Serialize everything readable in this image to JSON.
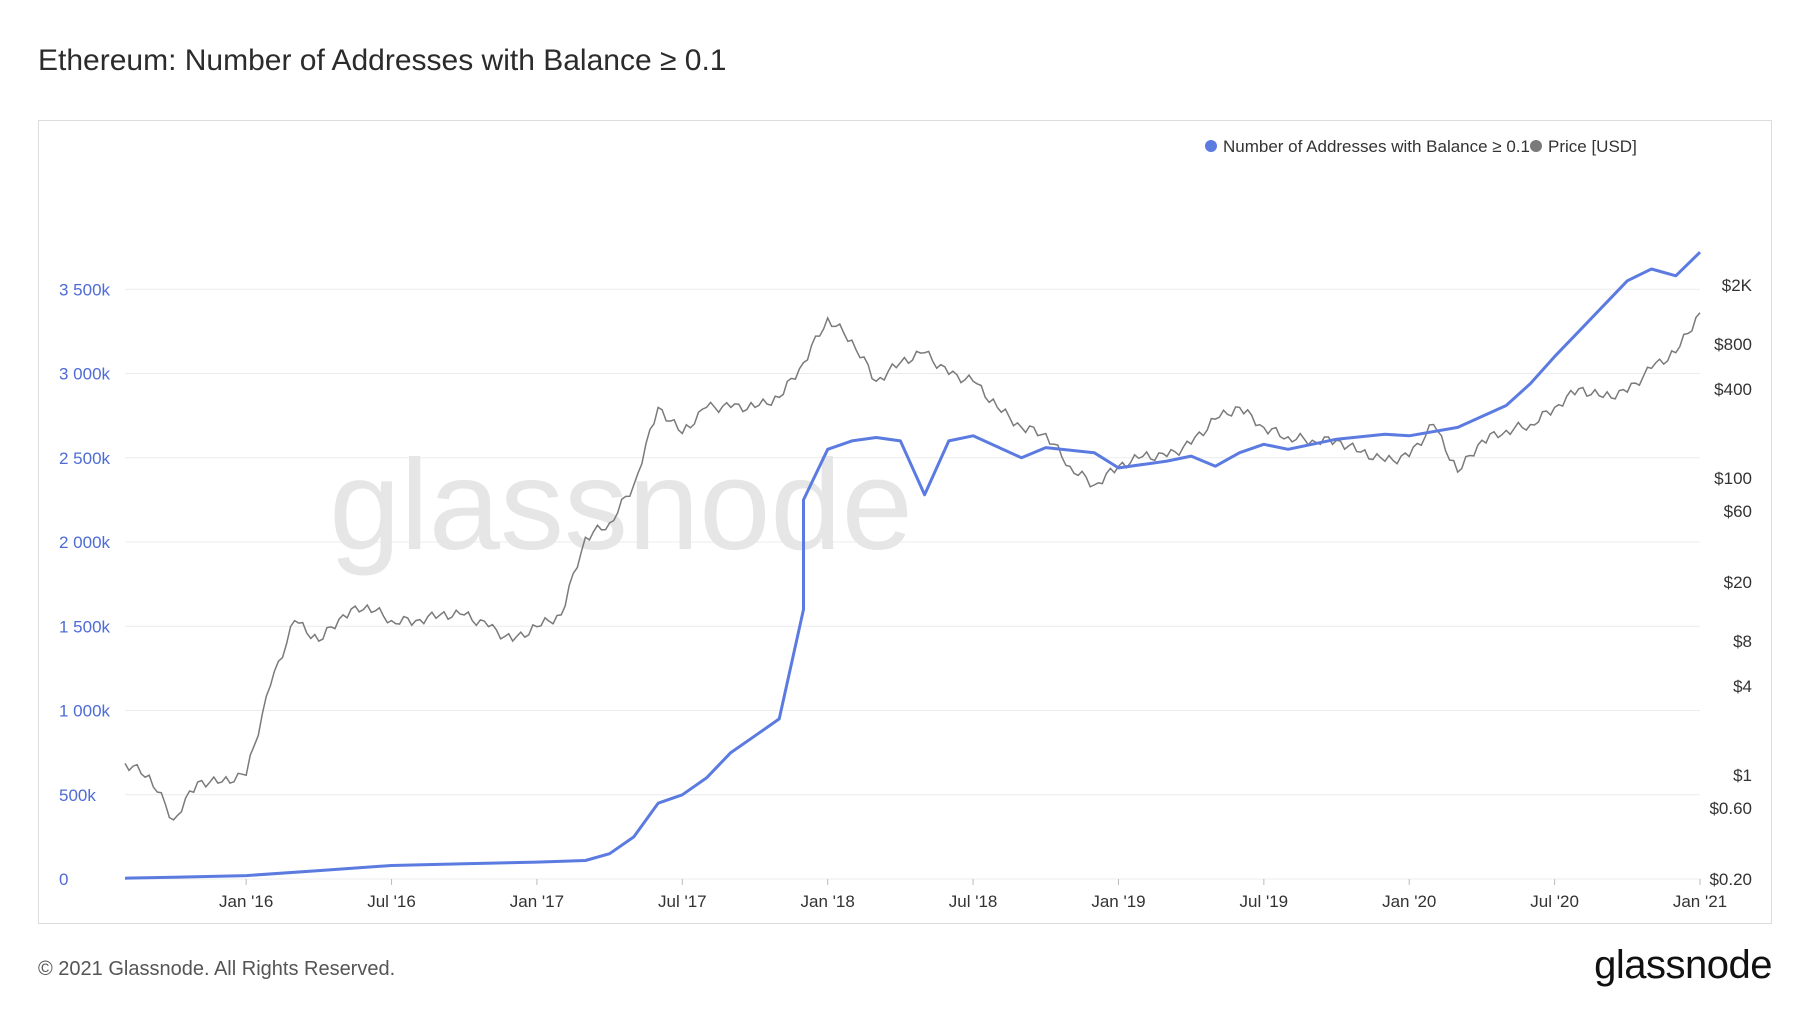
{
  "title": "Ethereum: Number of Addresses with Balance ≥ 0.1",
  "watermark": "glassnode",
  "footer": {
    "copyright": "© 2021 Glassnode. All Rights Reserved.",
    "brand": "glassnode"
  },
  "colors": {
    "addresses": "#5b7be0",
    "price": "#7a7a7a",
    "grid": "#ececec",
    "left_ticks": "#4e6bd6"
  },
  "chart_data": {
    "type": "line",
    "legend": {
      "placement": "top-right",
      "items": [
        "Number of Addresses with Balance ≥ 0.1",
        "Price [USD]"
      ]
    },
    "x_ticks": [
      "Jan '16",
      "Jul '16",
      "Jan '17",
      "Jul '17",
      "Jan '18",
      "Jul '18",
      "Jan '19",
      "Jul '19",
      "Jan '20",
      "Jul '20",
      "Jan '21"
    ],
    "x_tick_dates": [
      "2016-01",
      "2016-07",
      "2017-01",
      "2017-07",
      "2018-01",
      "2018-07",
      "2019-01",
      "2019-07",
      "2020-01",
      "2020-07",
      "2021-01"
    ],
    "xlim": [
      "2015-08",
      "2021-01"
    ],
    "y_left": {
      "label": "",
      "ticks": [
        "0",
        "500k",
        "1 000k",
        "1 500k",
        "2 000k",
        "2 500k",
        "3 000k",
        "3 500k"
      ],
      "values": [
        0,
        500000,
        1000000,
        1500000,
        2000000,
        2500000,
        3000000,
        3500000
      ],
      "ylim": [
        0,
        4000000
      ]
    },
    "y_right": {
      "label": "",
      "scale": "log",
      "ticks": [
        "$0.20",
        "$0.60",
        "$1",
        "$4",
        "$8",
        "$20",
        "$60",
        "$100",
        "$400",
        "$800",
        "$2K"
      ],
      "values": [
        0.2,
        0.6,
        1,
        4,
        8,
        20,
        60,
        100,
        400,
        800,
        2000
      ]
    },
    "grid": true,
    "series": [
      {
        "name": "Number of Addresses with Balance ≥ 0.1",
        "axis": "left",
        "x": [
          "2015-08",
          "2015-10",
          "2016-01",
          "2016-04",
          "2016-07",
          "2016-10",
          "2017-01",
          "2017-03",
          "2017-04",
          "2017-05",
          "2017-06",
          "2017-07",
          "2017-08",
          "2017-09",
          "2017-10",
          "2017-11",
          "2017-12",
          "2017-12",
          "2018-01",
          "2018-02",
          "2018-03",
          "2018-04",
          "2018-05",
          "2018-06",
          "2018-07",
          "2018-09",
          "2018-10",
          "2018-12",
          "2019-01",
          "2019-03",
          "2019-04",
          "2019-05",
          "2019-06",
          "2019-07",
          "2019-08",
          "2019-10",
          "2019-12",
          "2020-01",
          "2020-03",
          "2020-05",
          "2020-06",
          "2020-07",
          "2020-08",
          "2020-09",
          "2020-10",
          "2020-11",
          "2020-12",
          "2021-01"
        ],
        "values": [
          5000,
          10000,
          20000,
          50000,
          80000,
          90000,
          100000,
          110000,
          150000,
          250000,
          450000,
          500000,
          600000,
          750000,
          850000,
          950000,
          1600000,
          2250000,
          2550000,
          2600000,
          2620000,
          2600000,
          2280000,
          2600000,
          2630000,
          2500000,
          2560000,
          2530000,
          2440000,
          2480000,
          2510000,
          2450000,
          2530000,
          2580000,
          2550000,
          2610000,
          2640000,
          2630000,
          2680000,
          2810000,
          2940000,
          3100000,
          3250000,
          3400000,
          3550000,
          3620000,
          3580000,
          3720000
        ]
      },
      {
        "name": "Price [USD]",
        "axis": "right",
        "x": [
          "2015-08",
          "2015-09",
          "2015-10",
          "2015-11",
          "2015-12",
          "2016-01",
          "2016-02",
          "2016-03",
          "2016-04",
          "2016-05",
          "2016-06",
          "2016-07",
          "2016-08",
          "2016-09",
          "2016-10",
          "2016-11",
          "2016-12",
          "2017-01",
          "2017-02",
          "2017-03",
          "2017-04",
          "2017-05",
          "2017-06",
          "2017-07",
          "2017-08",
          "2017-09",
          "2017-10",
          "2017-11",
          "2017-12",
          "2018-01",
          "2018-02",
          "2018-03",
          "2018-04",
          "2018-05",
          "2018-06",
          "2018-07",
          "2018-08",
          "2018-09",
          "2018-10",
          "2018-11",
          "2018-12",
          "2019-01",
          "2019-02",
          "2019-03",
          "2019-04",
          "2019-05",
          "2019-06",
          "2019-07",
          "2019-08",
          "2019-09",
          "2019-10",
          "2019-11",
          "2019-12",
          "2020-01",
          "2020-02",
          "2020-03",
          "2020-04",
          "2020-05",
          "2020-06",
          "2020-07",
          "2020-08",
          "2020-09",
          "2020-10",
          "2020-11",
          "2020-12",
          "2021-01"
        ],
        "values": [
          1.2,
          1.0,
          0.5,
          0.9,
          0.9,
          1.0,
          4.0,
          11.0,
          8.0,
          12.0,
          14.0,
          11.0,
          11.0,
          12.0,
          12.0,
          10.0,
          8.0,
          10.0,
          12.0,
          40.0,
          50.0,
          90.0,
          300.0,
          200.0,
          300.0,
          300.0,
          300.0,
          350.0,
          600.0,
          1200.0,
          850.0,
          450.0,
          600.0,
          700.0,
          500.0,
          450.0,
          300.0,
          220.0,
          200.0,
          120.0,
          90.0,
          120.0,
          140.0,
          140.0,
          170.0,
          250.0,
          300.0,
          220.0,
          190.0,
          180.0,
          180.0,
          150.0,
          130.0,
          140.0,
          230.0,
          110.0,
          180.0,
          210.0,
          230.0,
          300.0,
          400.0,
          350.0,
          380.0,
          550.0,
          700.0,
          1300.0
        ]
      }
    ]
  }
}
